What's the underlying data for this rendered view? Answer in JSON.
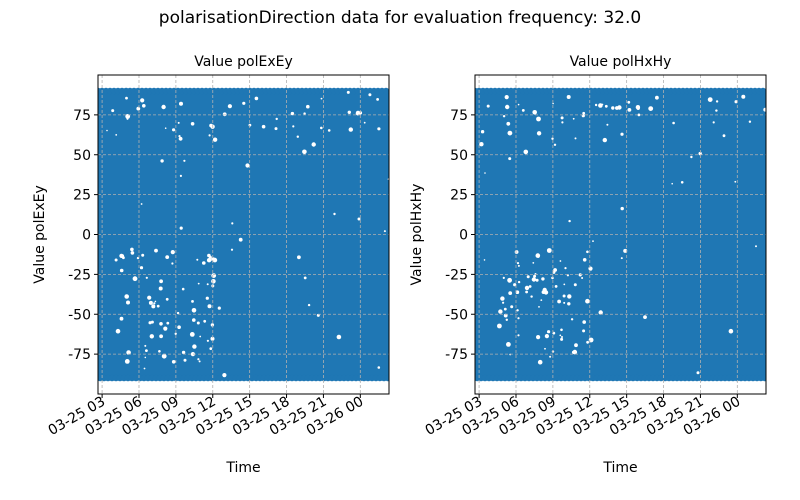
{
  "figure": {
    "suptitle": "polarisationDirection data for evaluation frequency: 32.0"
  },
  "chart_data": [
    {
      "type": "scatter",
      "title": "Value polExEy",
      "xlabel": "Time",
      "ylabel": "Value polExEy",
      "x_tick_labels": [
        "03-25 03",
        "03-25 06",
        "03-25 09",
        "03-25 12",
        "03-25 15",
        "03-25 18",
        "03-25 21",
        "03-26 00"
      ],
      "y_ticks": [
        -75,
        -50,
        -25,
        0,
        25,
        50,
        75
      ],
      "xlim": [
        "03-25 02:40",
        "03-26 02:20"
      ],
      "ylim": [
        -100,
        100
      ],
      "data_range": {
        "x": [
          "03-25 02:40",
          "03-26 02:20"
        ],
        "y": [
          -90,
          90
        ]
      },
      "grid": true,
      "color": "#1f77b4"
    },
    {
      "type": "scatter",
      "title": "Value polHxHy",
      "xlabel": "Time",
      "ylabel": "Value polHxHy",
      "x_tick_labels": [
        "03-25 03",
        "03-25 06",
        "03-25 09",
        "03-25 12",
        "03-25 15",
        "03-25 18",
        "03-25 21",
        "03-26 00"
      ],
      "y_ticks": [
        -75,
        -50,
        -25,
        0,
        25,
        50,
        75
      ],
      "xlim": [
        "03-25 02:40",
        "03-26 02:20"
      ],
      "ylim": [
        -100,
        100
      ],
      "data_range": {
        "x": [
          "03-25 02:40",
          "03-26 02:20"
        ],
        "y": [
          -90,
          90
        ]
      },
      "grid": true,
      "color": "#1f77b4"
    }
  ]
}
